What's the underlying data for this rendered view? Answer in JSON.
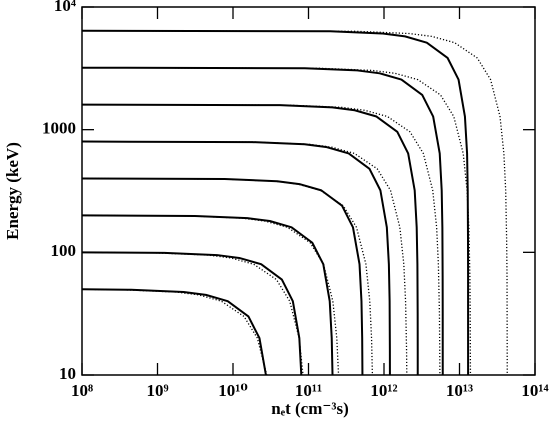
{
  "chart_data": {
    "type": "line",
    "xlabel": "nₑt (cm⁻³s)",
    "ylabel": "Energy (keV)",
    "xscale": "log",
    "yscale": "log",
    "xlim": [
      100000000.0,
      100000000000000.0
    ],
    "ylim": [
      10,
      10000
    ],
    "xticks": [
      {
        "value": 100000000.0,
        "label": "10⁸"
      },
      {
        "value": 1000000000.0,
        "label": "10⁹"
      },
      {
        "value": 10000000000.0,
        "label": "10¹⁰"
      },
      {
        "value": 100000000000.0,
        "label": "10¹¹"
      },
      {
        "value": 1000000000000.0,
        "label": "10¹²"
      },
      {
        "value": 10000000000000.0,
        "label": "10¹³"
      },
      {
        "value": 100000000000000.0,
        "label": "10¹⁴"
      }
    ],
    "yticks": [
      10,
      100,
      1000,
      {
        "value": 10000,
        "label": "10⁴"
      }
    ],
    "series": [
      {
        "color": "#000000",
        "style": "solid",
        "x": [
          100000000.0,
          447000000.0,
          2220000000.0,
          4380000000.0,
          8520000000.0,
          16000000000.0,
          22400000000.0,
          27300000000.0
        ],
        "values": [
          50,
          49.5,
          47.5,
          45,
          40,
          30,
          20,
          10
        ]
      },
      {
        "color": "#000000",
        "style": "solid",
        "x": [
          100000000.0,
          1240000000.0,
          6140000000.0,
          12100000000.0,
          23600000000.0,
          44400000000.0,
          62000000000.0,
          75600000000.0,
          80300000000.0
        ],
        "values": [
          100,
          99,
          95,
          90,
          80,
          60,
          40,
          20,
          10
        ]
      },
      {
        "color": "#000000",
        "style": "solid",
        "x": [
          100000000.0,
          3130000000.0,
          15500000000.0,
          30700000000.0,
          59600000000.0,
          112000000000.0,
          157000000000.0,
          191000000000.0,
          203000000000.0,
          208000000000.0
        ],
        "values": [
          200,
          198,
          190,
          180,
          160,
          120,
          80,
          40,
          20,
          10
        ]
      },
      {
        "color": "#000000",
        "style": "solid",
        "x": [
          100000000.0,
          7750000000.0,
          38500000000.0,
          75900000000.0,
          148000000000.0,
          278000000000.0,
          388000000000.0,
          474000000000.0,
          503000000000.0,
          514000000000.0,
          518000000000.0
        ],
        "values": [
          400,
          396,
          380,
          360,
          320,
          240,
          160,
          80,
          40,
          20,
          10
        ]
      },
      {
        "color": "#000000",
        "style": "solid",
        "x": [
          100000000.0,
          17900000000.0,
          88800000000.0,
          175000000000.0,
          341000000000.0,
          642000000000.0,
          896000000000.0,
          1090000000000.0,
          1160000000000.0,
          1187000000000.0,
          1196000000000.0,
          1198000000000.0
        ],
        "values": [
          800,
          792,
          760,
          720,
          640,
          480,
          320,
          160,
          80,
          40,
          16,
          10
        ]
      },
      {
        "color": "#000000",
        "style": "solid",
        "x": [
          100000000.0,
          41700000000.0,
          207000000000.0,
          409000000000.0,
          795000000000.0,
          1500000000000.0,
          2090000000000.0,
          2550000000000.0,
          2710000000000.0,
          2769000000000.0,
          2792000000000.0,
          2797000000000.0,
          2798600000000.0
        ],
        "values": [
          1600,
          1584,
          1520,
          1440,
          1280,
          960,
          640,
          320,
          160,
          80,
          32,
          16,
          10
        ]
      },
      {
        "color": "#000000",
        "style": "solid",
        "x": [
          100000000.0,
          89400000000.0,
          444000000000.0,
          876000000000.0,
          1700000000000.0,
          3210000000000.0,
          4480000000000.0,
          5470000000000.0,
          5810000000000.0,
          5930000000000.0,
          5980000000000.0,
          5994000000000.0,
          6000000000000.0
        ],
        "values": [
          3200,
          3168,
          3040,
          2880,
          2560,
          1920,
          1280,
          640,
          320,
          160,
          64,
          32,
          10
        ]
      },
      {
        "color": "#000000",
        "style": "solid",
        "x": [
          100000000.0,
          194000000000.0,
          962000000000.0,
          1900000000000.0,
          3690000000000.0,
          6960000000000.0,
          9710000000000.0,
          11800000000000.0,
          12600000000000.0,
          12850000000000.0,
          12960000000000.0,
          12990000000000.0,
          13000000000000.0
        ],
        "values": [
          6400,
          6336,
          6080,
          5760,
          5120,
          3840,
          2560,
          1280,
          640,
          320,
          128,
          64,
          10
        ]
      },
      {
        "color": "#000000",
        "style": "dotted",
        "x": [
          100000000.0,
          350000000.0,
          1750000000.0,
          3500000000.0,
          7000000000.0,
          14000000000.0,
          21000000000.0,
          28000000000.0
        ],
        "values": [
          50,
          49.5,
          47.5,
          45,
          40,
          30,
          20,
          10
        ]
      },
      {
        "color": "#000000",
        "style": "dotted",
        "x": [
          100000000.0,
          940000000.0,
          4700000000.0,
          9400000000.0,
          18800000000.0,
          37600000000.0,
          56400000000.0,
          75200000000.0,
          84600000000.0
        ],
        "values": [
          100,
          99,
          95,
          90,
          80,
          60,
          40,
          20,
          10
        ]
      },
      {
        "color": "#000000",
        "style": "dotted",
        "x": [
          100000000.0,
          2630000000.0,
          13200000000.0,
          26300000000.0,
          52600000000.0,
          105000000000.0,
          158000000000.0,
          210000000000.0,
          237000000000.0,
          250000000000.0
        ],
        "values": [
          200,
          198,
          190,
          180,
          160,
          120,
          80,
          40,
          20,
          10
        ]
      },
      {
        "color": "#000000",
        "style": "dotted",
        "x": [
          100000000.0,
          7200000000.0,
          36000000000.0,
          72000000000.0,
          144000000000.0,
          288000000000.0,
          432000000000.0,
          576000000000.0,
          648000000000.0,
          684000000000.0,
          702000000000.0
        ],
        "values": [
          400,
          396,
          380,
          360,
          320,
          240,
          160,
          80,
          40,
          20,
          10
        ]
      },
      {
        "color": "#000000",
        "style": "dotted",
        "x": [
          100000000.0,
          20300000000.0,
          102000000000.0,
          203000000000.0,
          406000000000.0,
          812000000000.0,
          1220000000000.0,
          1620000000000.0,
          1830000000000.0,
          1930000000000.0,
          1990000000000.0,
          2005000000000.0
        ],
        "values": [
          800,
          792,
          760,
          720,
          640,
          480,
          320,
          160,
          80,
          40,
          16,
          10
        ]
      },
      {
        "color": "#000000",
        "style": "dotted",
        "x": [
          100000000.0,
          55300000000.0,
          277000000000.0,
          553000000000.0,
          1110000000000.0,
          2210000000000.0,
          3320000000000.0,
          4420000000000.0,
          4980000000000.0,
          5250000000000.0,
          5420000000000.0,
          5470000000000.0,
          5500000000000.0
        ],
        "values": [
          1600,
          1584,
          1520,
          1440,
          1280,
          960,
          640,
          320,
          160,
          80,
          32,
          16,
          10
        ]
      },
      {
        "color": "#000000",
        "style": "dotted",
        "x": [
          100000000.0,
          140000000000.0,
          700000000000.0,
          1400000000000.0,
          2800000000000.0,
          5600000000000.0,
          8400000000000.0,
          11200000000000.0,
          12600000000000.0,
          13300000000000.0,
          13720000000000.0,
          13860000000000.0,
          13960000000000.0
        ],
        "values": [
          3200,
          3168,
          3040,
          2880,
          2560,
          1920,
          1280,
          640,
          320,
          160,
          64,
          32,
          10
        ]
      },
      {
        "color": "#000000",
        "style": "dotted",
        "x": [
          100000000.0,
          430000000000.0,
          2150000000000.0,
          4300000000000.0,
          8600000000000.0,
          17200000000000.0,
          25800000000000.0,
          34400000000000.0,
          38700000000000.0,
          40900000000000.0,
          42100000000000.0,
          42600000000000.0,
          42900000000000.0
        ],
        "values": [
          6400,
          6336,
          6080,
          5760,
          5120,
          3840,
          2560,
          1280,
          640,
          320,
          128,
          64,
          10
        ]
      }
    ]
  }
}
